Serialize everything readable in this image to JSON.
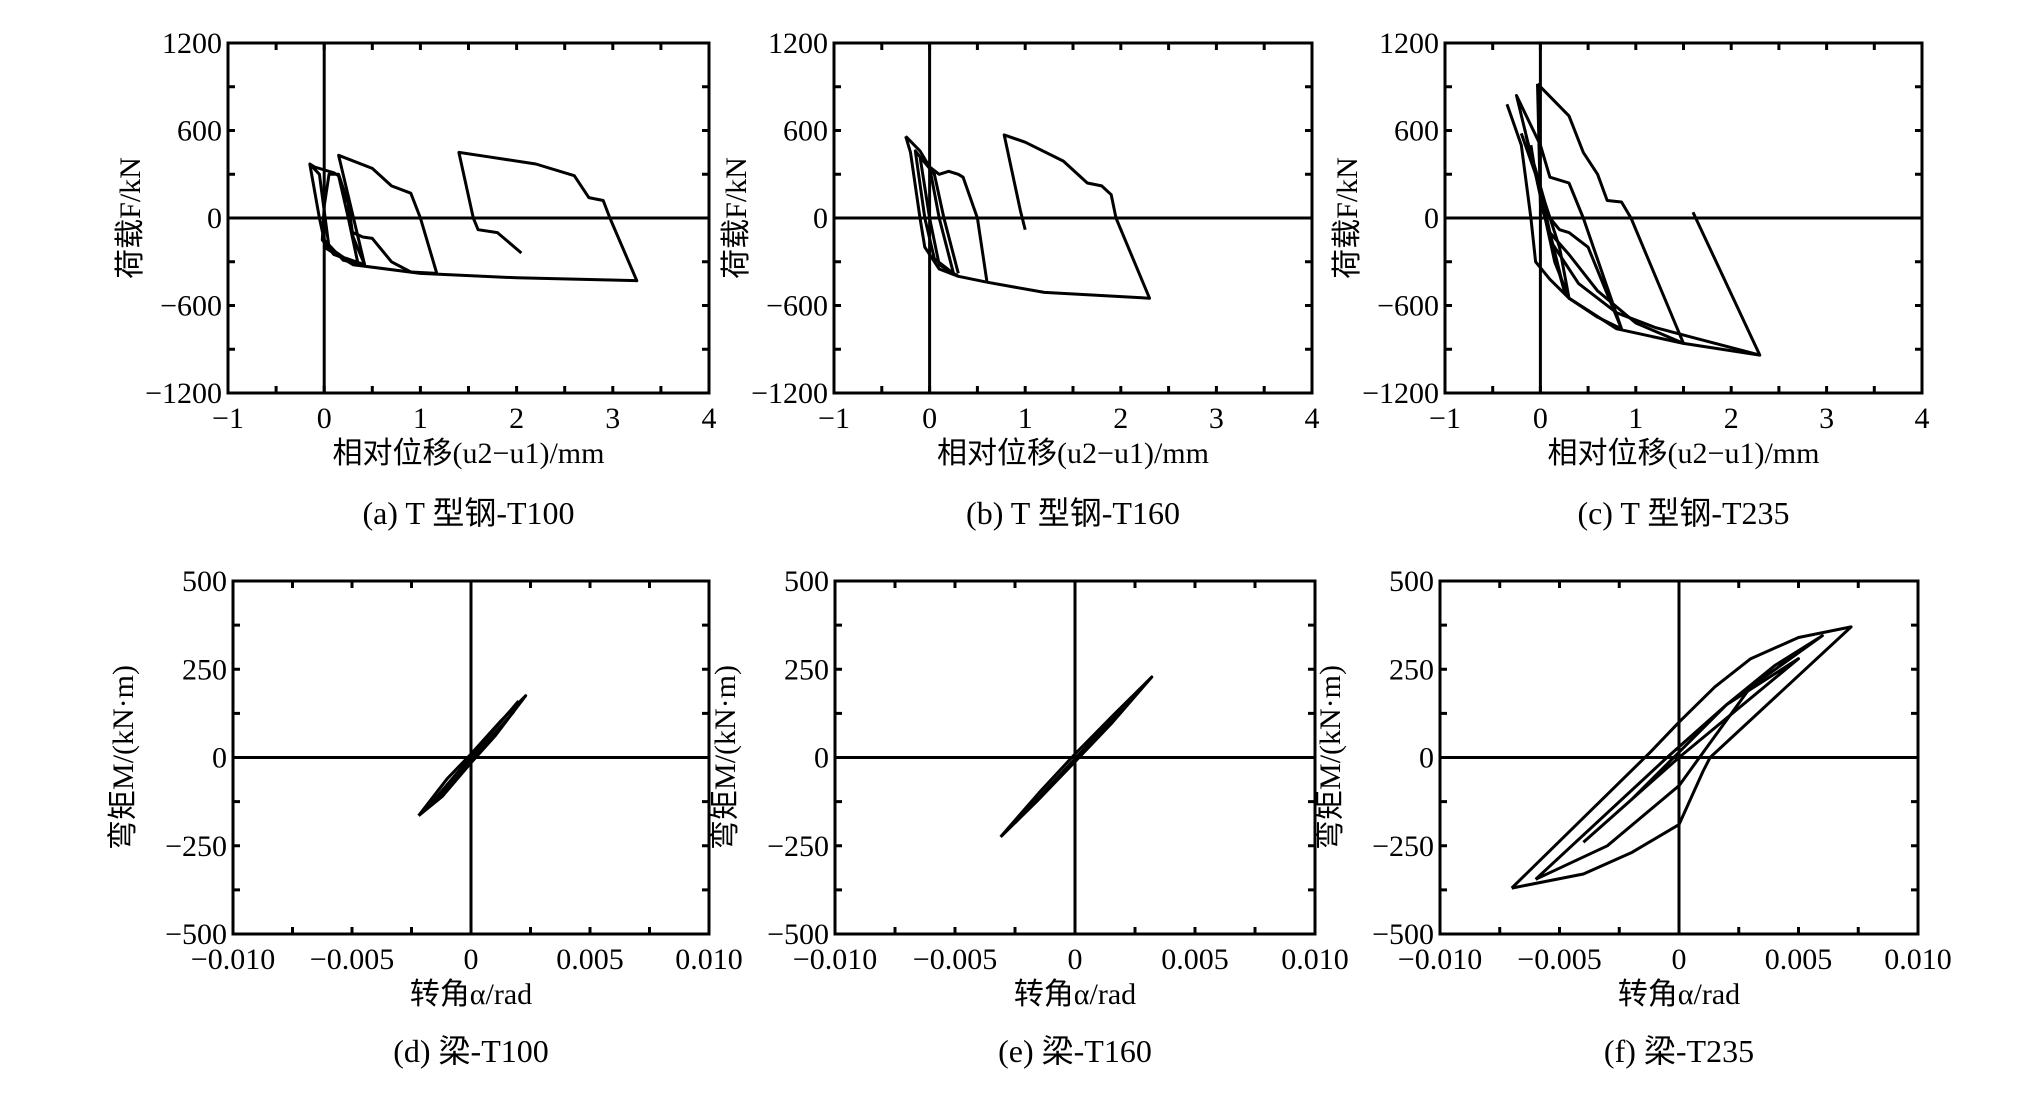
{
  "chart_data": [
    {
      "id": "a",
      "type": "line",
      "caption": "(a) T 型钢-T100",
      "xlabel": "相对位移(u2−u1)/mm",
      "ylabel": "荷载F/kN",
      "xlim": [
        -1,
        4
      ],
      "ylim": [
        -1200,
        1200
      ],
      "xticks": [
        "−1",
        "0",
        "1",
        "2",
        "3",
        "4"
      ],
      "xtickvals": [
        -1,
        0,
        1,
        2,
        3,
        4
      ],
      "yticks": [
        "1200",
        "600",
        "0",
        "−600",
        "−1200"
      ],
      "ytickvals": [
        1200,
        600,
        0,
        -600,
        -1200
      ],
      "series": [
        [
          [
            -0.15,
            370
          ],
          [
            -0.05,
            300
          ],
          [
            0,
            50
          ],
          [
            0.05,
            -200
          ],
          [
            0.2,
            -270
          ],
          [
            0.42,
            -320
          ],
          [
            0.3,
            -130
          ],
          [
            0.25,
            100
          ],
          [
            0.15,
            300
          ],
          [
            0.05,
            300
          ],
          [
            0,
            80
          ],
          [
            -0.02,
            -150
          ],
          [
            0.1,
            -250
          ],
          [
            0.35,
            -310
          ],
          [
            0.25,
            0
          ],
          [
            0.15,
            290
          ],
          [
            0.1,
            310
          ],
          [
            -0.1,
            350
          ],
          [
            -0.15,
            370
          ],
          [
            -0.05,
            0
          ],
          [
            0,
            -150
          ],
          [
            0.2,
            -290
          ],
          [
            0.42,
            -320
          ]
        ],
        [
          [
            0.42,
            -320
          ],
          [
            0.15,
            430
          ],
          [
            0.5,
            340
          ],
          [
            0.7,
            220
          ],
          [
            0.9,
            170
          ],
          [
            1.0,
            0
          ],
          [
            1.17,
            -380
          ]
        ],
        [
          [
            0.3,
            -100
          ],
          [
            0.4,
            -130
          ],
          [
            0.5,
            -140
          ],
          [
            0.7,
            -300
          ],
          [
            0.9,
            -370
          ],
          [
            1.17,
            -380
          ]
        ],
        [
          [
            0,
            -200
          ],
          [
            0.3,
            -320
          ],
          [
            1,
            -380
          ],
          [
            2,
            -410
          ],
          [
            3.25,
            -430
          ],
          [
            2.97,
            0
          ],
          [
            2.9,
            120
          ],
          [
            2.75,
            140
          ],
          [
            2.6,
            290
          ],
          [
            2.2,
            370
          ],
          [
            1.7,
            420
          ],
          [
            1.4,
            450
          ],
          [
            1.55,
            0
          ],
          [
            1.6,
            -80
          ],
          [
            1.8,
            -100
          ],
          [
            2.05,
            -240
          ]
        ]
      ]
    },
    {
      "id": "b",
      "type": "line",
      "caption": "(b) T 型钢-T160",
      "xlabel": "相对位移(u2−u1)/mm",
      "ylabel": "荷载F/kN",
      "xlim": [
        -1,
        4
      ],
      "ylim": [
        -1200,
        1200
      ],
      "xticks": [
        "−1",
        "0",
        "1",
        "2",
        "3",
        "4"
      ],
      "xtickvals": [
        -1,
        0,
        1,
        2,
        3,
        4
      ],
      "yticks": [
        "1200",
        "600",
        "0",
        "−600",
        "−1200"
      ],
      "ytickvals": [
        1200,
        600,
        0,
        -600,
        -1200
      ],
      "series": [
        [
          [
            -0.25,
            560
          ],
          [
            -0.1,
            460
          ],
          [
            0,
            350
          ],
          [
            0.1,
            300
          ],
          [
            0.2,
            320
          ],
          [
            0.3,
            300
          ],
          [
            0.35,
            280
          ],
          [
            0.5,
            0
          ],
          [
            0.6,
            -440
          ]
        ],
        [
          [
            -0.25,
            560
          ],
          [
            -0.2,
            450
          ],
          [
            -0.1,
            0
          ],
          [
            -0.05,
            -200
          ],
          [
            0.1,
            -350
          ],
          [
            0.3,
            -400
          ],
          [
            0.6,
            -440
          ]
        ],
        [
          [
            0.3,
            -380
          ],
          [
            0.15,
            0
          ],
          [
            0.05,
            300
          ],
          [
            -0.15,
            460
          ],
          [
            -0.05,
            0
          ],
          [
            0.05,
            -280
          ],
          [
            0.25,
            -380
          ],
          [
            0.1,
            0
          ],
          [
            0,
            350
          ],
          [
            -0.1,
            420
          ],
          [
            0,
            0
          ],
          [
            0.1,
            -320
          ],
          [
            0.3,
            -400
          ]
        ],
        [
          [
            0.6,
            -440
          ],
          [
            1.2,
            -510
          ],
          [
            2.3,
            -550
          ],
          [
            1.95,
            0
          ],
          [
            1.9,
            160
          ],
          [
            1.8,
            220
          ],
          [
            1.65,
            240
          ],
          [
            1.4,
            390
          ],
          [
            1.0,
            520
          ],
          [
            0.78,
            570
          ],
          [
            0.95,
            50
          ],
          [
            1.0,
            -80
          ]
        ]
      ]
    },
    {
      "id": "c",
      "type": "line",
      "caption": "(c) T 型钢-T235",
      "xlabel": "相对位移(u2−u1)/mm",
      "ylabel": "荷载F/kN",
      "xlim": [
        -1,
        4
      ],
      "ylim": [
        -1200,
        1200
      ],
      "xticks": [
        "−1",
        "0",
        "1",
        "2",
        "3",
        "4"
      ],
      "xtickvals": [
        -1,
        0,
        1,
        2,
        3,
        4
      ],
      "yticks": [
        "1200",
        "600",
        "0",
        "−600",
        "−1200"
      ],
      "ytickvals": [
        1200,
        600,
        0,
        -600,
        -1200
      ],
      "series": [
        [
          [
            -0.35,
            780
          ],
          [
            -0.2,
            500
          ],
          [
            -0.1,
            0
          ],
          [
            -0.05,
            -300
          ],
          [
            0.1,
            -420
          ],
          [
            0.3,
            -550
          ],
          [
            0.6,
            -680
          ],
          [
            0.85,
            -760
          ],
          [
            0.5,
            -200
          ],
          [
            0.3,
            -100
          ],
          [
            0.2,
            -80
          ],
          [
            0.1,
            0
          ],
          [
            -0.05,
            300
          ],
          [
            -0.25,
            840
          ],
          [
            0,
            500
          ],
          [
            0.1,
            280
          ],
          [
            0.3,
            240
          ],
          [
            0.45,
            0
          ],
          [
            0.85,
            -760
          ]
        ],
        [
          [
            -0.03,
            920
          ],
          [
            0.3,
            700
          ],
          [
            0.45,
            450
          ],
          [
            0.6,
            300
          ],
          [
            0.7,
            120
          ],
          [
            0.85,
            110
          ],
          [
            0.95,
            0
          ],
          [
            1.5,
            -860
          ],
          [
            1.0,
            -720
          ],
          [
            0.6,
            -500
          ],
          [
            0.3,
            -250
          ],
          [
            0.1,
            -100
          ],
          [
            0,
            100
          ],
          [
            -0.03,
            920
          ]
        ],
        [
          [
            -0.2,
            580
          ],
          [
            -0.05,
            300
          ],
          [
            0.05,
            0
          ],
          [
            0.15,
            -300
          ],
          [
            0.3,
            -550
          ],
          [
            0.2,
            -200
          ],
          [
            0.05,
            100
          ],
          [
            -0.15,
            560
          ],
          [
            0,
            200
          ],
          [
            0.1,
            -100
          ],
          [
            0.25,
            -500
          ],
          [
            0.1,
            -150
          ],
          [
            -0.05,
            300
          ],
          [
            -0.1,
            500
          ]
        ],
        [
          [
            0.3,
            -550
          ],
          [
            0.8,
            -760
          ],
          [
            1.5,
            -860
          ],
          [
            2.3,
            -940
          ],
          [
            1.6,
            40
          ]
        ],
        [
          [
            0.1,
            -150
          ],
          [
            0.4,
            -450
          ],
          [
            0.8,
            -650
          ],
          [
            1.2,
            -750
          ],
          [
            1.6,
            -820
          ],
          [
            2.3,
            -940
          ]
        ]
      ]
    },
    {
      "id": "d",
      "type": "line",
      "caption": "(d)  梁-T100",
      "xlabel": "转角α/rad",
      "ylabel": "弯矩M/(kN·m)",
      "xlim": [
        -0.01,
        0.01
      ],
      "ylim": [
        -500,
        500
      ],
      "xticks": [
        "−0.010",
        "−0.005",
        "0",
        "0.005",
        "0.010"
      ],
      "xtickvals": [
        -0.01,
        -0.005,
        0,
        0.005,
        0.01
      ],
      "yticks": [
        "500",
        "250",
        "0",
        "−250",
        "−500"
      ],
      "ytickvals": [
        500,
        250,
        0,
        -250,
        -500
      ],
      "series": [
        [
          [
            -0.0022,
            -165
          ],
          [
            -0.001,
            -60
          ],
          [
            0,
            10
          ],
          [
            0.0012,
            100
          ],
          [
            0.0023,
            175
          ],
          [
            0.001,
            60
          ],
          [
            0,
            -15
          ],
          [
            -0.0012,
            -110
          ],
          [
            -0.0022,
            -165
          ]
        ],
        [
          [
            -0.0018,
            -140
          ],
          [
            0.002,
            160
          ]
        ],
        [
          [
            -0.0015,
            -125
          ],
          [
            0.0018,
            130
          ]
        ]
      ]
    },
    {
      "id": "e",
      "type": "line",
      "caption": "(e)  梁-T160",
      "xlabel": "转角α/rad",
      "ylabel": "弯矩M/(kN·m)",
      "xlim": [
        -0.01,
        0.01
      ],
      "ylim": [
        -500,
        500
      ],
      "xticks": [
        "−0.010",
        "−0.005",
        "0",
        "0.005",
        "0.010"
      ],
      "xtickvals": [
        -0.01,
        -0.005,
        0,
        0.005,
        0.01
      ],
      "yticks": [
        "500",
        "250",
        "0",
        "−250",
        "−500"
      ],
      "ytickvals": [
        500,
        250,
        0,
        -250,
        -500
      ],
      "series": [
        [
          [
            -0.0031,
            -225
          ],
          [
            -0.0015,
            -100
          ],
          [
            0,
            10
          ],
          [
            0.0016,
            120
          ],
          [
            0.0032,
            228
          ],
          [
            0.0015,
            95
          ],
          [
            0,
            -12
          ],
          [
            -0.0016,
            -125
          ],
          [
            -0.0031,
            -225
          ]
        ],
        [
          [
            -0.0025,
            -185
          ],
          [
            0.0028,
            200
          ]
        ]
      ]
    },
    {
      "id": "f",
      "type": "line",
      "caption": "(f)  梁-T235",
      "xlabel": "转角α/rad",
      "ylabel": "弯矩M/(kN·m)",
      "xlim": [
        -0.01,
        0.01
      ],
      "ylim": [
        -500,
        500
      ],
      "xticks": [
        "−0.010",
        "−0.005",
        "0",
        "0.005",
        "0.010"
      ],
      "xtickvals": [
        -0.01,
        -0.005,
        0,
        0.005,
        0.01
      ],
      "yticks": [
        "500",
        "250",
        "0",
        "−250",
        "−500"
      ],
      "ytickvals": [
        500,
        250,
        0,
        -250,
        -500
      ],
      "series": [
        [
          [
            -0.007,
            -370
          ],
          [
            -0.0012,
            15
          ],
          [
            0,
            100
          ],
          [
            0.0015,
            200
          ],
          [
            0.003,
            280
          ],
          [
            0.005,
            340
          ],
          [
            0.0072,
            370
          ],
          [
            0.0013,
            0
          ],
          [
            0.001,
            -40
          ],
          [
            0,
            -190
          ],
          [
            -0.002,
            -270
          ],
          [
            -0.004,
            -330
          ],
          [
            -0.007,
            -370
          ]
        ],
        [
          [
            -0.006,
            -345
          ],
          [
            -0.0005,
            0
          ],
          [
            0.002,
            150
          ],
          [
            0.004,
            260
          ],
          [
            0.006,
            345
          ],
          [
            0.003,
            200
          ],
          [
            0,
            -80
          ],
          [
            -0.003,
            -250
          ],
          [
            -0.006,
            -345
          ]
        ],
        [
          [
            -0.004,
            -240
          ],
          [
            0,
            0
          ],
          [
            0.005,
            280
          ],
          [
            0.002,
            150
          ],
          [
            -0.002,
            -120
          ],
          [
            -0.004,
            -240
          ]
        ]
      ]
    }
  ]
}
